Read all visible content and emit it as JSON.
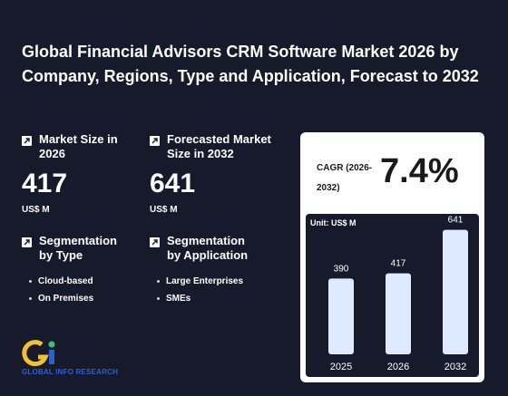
{
  "title": "Global Financial Advisors CRM Software Market 2026 by Company, Regions, Type and Application, Forecast to 2032",
  "market_size": {
    "label": "Market Size in 2026",
    "value": "417",
    "unit": "US$ M"
  },
  "forecast_size": {
    "label": "Forecasted Market Size in 2032",
    "value": "641",
    "unit": "US$ M"
  },
  "segmentation_type": {
    "label": "Segmentation by Type",
    "items": [
      "Cloud-based",
      "On Premises"
    ]
  },
  "segmentation_application": {
    "label": "Segmentation by Application",
    "items": [
      "Large Enterprises",
      "SMEs"
    ]
  },
  "cagr": {
    "label": "CAGR (2026-2032)",
    "value": "7.4%"
  },
  "logo": {
    "text": "GLOBAL INFO RESEARCH"
  },
  "chart_data": {
    "type": "bar",
    "unit_label": "Unit: US$ M",
    "categories": [
      "2025",
      "2026",
      "2032"
    ],
    "values": [
      390,
      417,
      641
    ],
    "bar_color": "#ddeaff",
    "ylim": [
      0,
      700
    ]
  }
}
